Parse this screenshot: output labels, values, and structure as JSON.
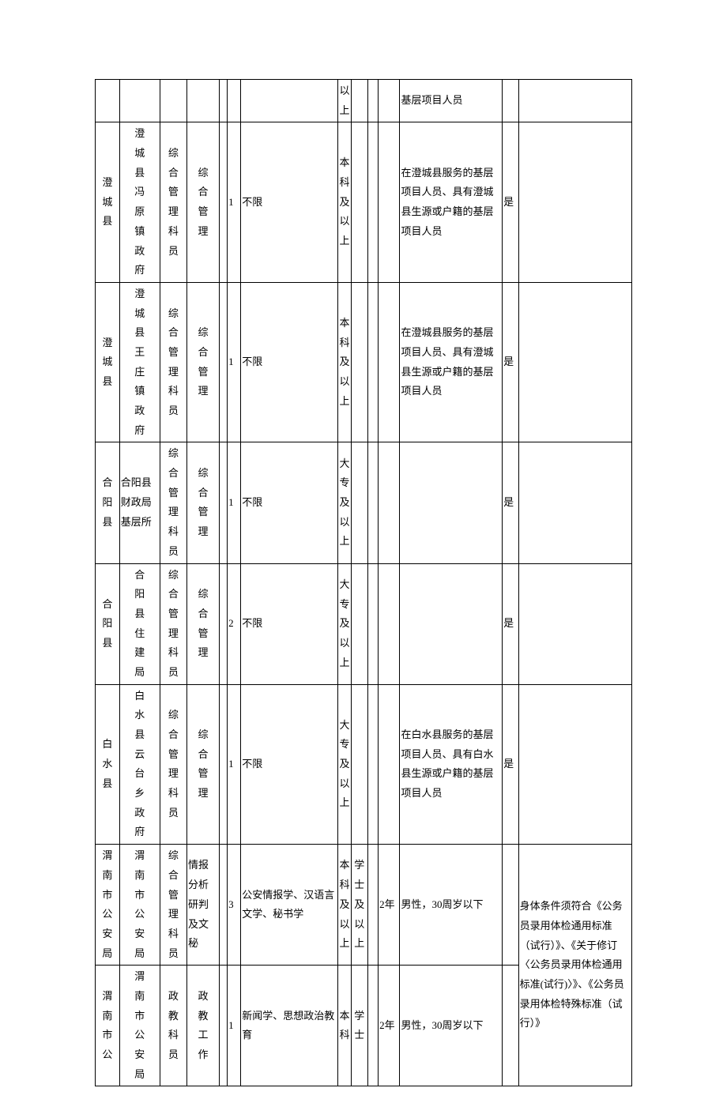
{
  "table": {
    "columns": 14,
    "column_widths_pct": [
      4.5,
      7.5,
      5,
      6,
      1.5,
      2.5,
      18,
      2.5,
      3,
      2,
      4,
      19,
      3,
      21
    ],
    "font_family": "SimSun",
    "font_size_pt": 10,
    "border_color": "#000000",
    "background_color": "#ffffff",
    "text_color": "#000000",
    "rows": [
      {
        "cells": [
          "",
          "",
          "",
          "",
          "",
          "",
          "",
          "以上",
          "",
          "",
          "",
          "基层项目人员",
          "",
          ""
        ]
      },
      {
        "cells": [
          "澄城县",
          "澄城县冯原镇政府",
          "综合管理科员",
          "综合管理",
          "",
          "1",
          "不限",
          "本科及以上",
          "",
          "",
          "",
          "在澄城县服务的基层项目人员、具有澄城县生源或户籍的基层项目人员",
          "是",
          ""
        ]
      },
      {
        "cells": [
          "澄城县",
          "澄城县王庄镇政府",
          "综合管理科员",
          "综合管理",
          "",
          "1",
          "不限",
          "本科及以上",
          "",
          "",
          "",
          "在澄城县服务的基层项目人员、具有澄城县生源或户籍的基层项目人员",
          "是",
          ""
        ]
      },
      {
        "cells": [
          "合阳县",
          "合阳县财政局基层所",
          "综合管理科员",
          "综合管理",
          "",
          "1",
          "不限",
          "大专及以上",
          "",
          "",
          "",
          "",
          "是",
          ""
        ]
      },
      {
        "cells": [
          "合阳县",
          "合阳县住建局",
          "综合管理科员",
          "综合管理",
          "",
          "2",
          "不限",
          "大专及以上",
          "",
          "",
          "",
          "",
          "是",
          ""
        ]
      },
      {
        "cells": [
          "白水县",
          "白水县云台乡政府",
          "综合管理科员",
          "综合管理",
          "",
          "1",
          "不限",
          "大专及以上",
          "",
          "",
          "",
          "在白水县服务的基层项目人员、具有白水县生源或户籍的基层项目人员",
          "是",
          ""
        ]
      },
      {
        "cells": [
          "渭南市公安局",
          "渭南市公安局",
          "综合管理科员",
          "情报分析研判及文秘",
          "",
          "3",
          "公安情报学、汉语言文学、秘书学",
          "本科及以上",
          "学士及以上",
          "",
          "2年",
          "男性，30周岁以下",
          "",
          "身体条件须符合《公务员录用体检通用标准（试行）》、《关于修订〈公务员录用体检通用标准(试行)"
        ],
        "c13_rowspan": 2
      },
      {
        "cells": [
          "渭南市公",
          "渭南市公安局",
          "政教科员",
          "政教工作",
          "",
          "1",
          "新闻学、思想政治教育",
          "本科",
          "学士",
          "",
          "2年",
          "男性，30周岁以下",
          "",
          "〉》、《公务员录用体检特殊标准（试行）》"
        ]
      }
    ]
  }
}
